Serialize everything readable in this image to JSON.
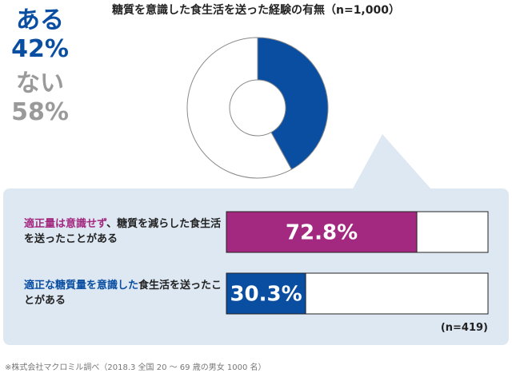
{
  "title": "糖質を意識した食生活を送った経験の有無（n=1,000）",
  "footnote": "※株式会社マクロミル調べ（2018.3 全国 20 〜 69 歳の男女 1000 名）",
  "chart_data": [
    {
      "type": "pie",
      "categories": [
        "ある",
        "ない"
      ],
      "values": [
        42,
        58
      ],
      "value_labels": [
        "42%",
        "58%"
      ],
      "colors": [
        "#0a4ea2",
        "#ffffff"
      ],
      "label_colors": [
        "#0a4ea2",
        "#9a9a9a"
      ]
    },
    {
      "type": "bar",
      "orientation": "horizontal",
      "n_label": "(n=419)",
      "categories": [
        {
          "highlight": "適正量は意識せず",
          "rest": "、糖質を減らした食生活を送ったことがある"
        },
        {
          "highlight": "適正な糖質量を意識した",
          "rest": "食生活を送ったことがある"
        }
      ],
      "values": [
        72.8,
        30.3
      ],
      "value_labels": [
        "72.8%",
        "30.3%"
      ],
      "colors": [
        "#a3287f",
        "#0a4ea2"
      ],
      "xlim": [
        0,
        100
      ]
    }
  ]
}
